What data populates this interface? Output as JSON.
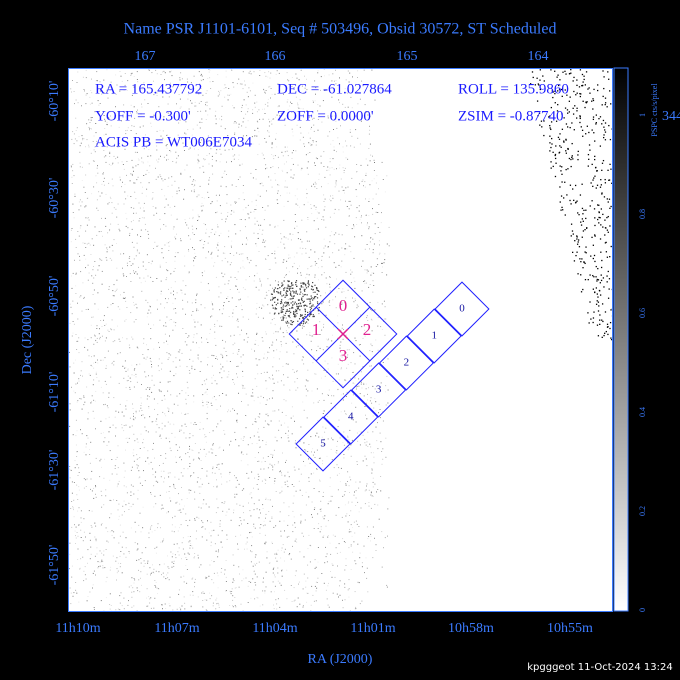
{
  "header": {
    "title": "Name PSR J1101-6101, Seq # 503496, Obsid 30572, ST Scheduled"
  },
  "info": [
    [
      "RA = 165.437792",
      "DEC = -61.027864",
      "ROLL = 135.9860"
    ],
    [
      "YOFF =  -0.300'",
      "ZOFF =  0.0000'",
      "ZSIM = -0.87740"
    ],
    [
      "ACIS PB = WT006E7034"
    ]
  ],
  "axes": {
    "x_label": "RA (J2000)",
    "y_label": "Dec (J2000)",
    "top_ticks": [
      "167",
      "166",
      "165",
      "164"
    ],
    "bottom_ticks": [
      "11h10m",
      "11h07m",
      "11h04m",
      "11h01m",
      "10h58m",
      "10h55m"
    ],
    "left_ticks": [
      "-60°10'",
      "-60°30'",
      "-60°50'",
      "-61°10'",
      "-61°30'",
      "-61°50'"
    ]
  },
  "colorbar": {
    "label": "PSPC cts/s/pixel",
    "ticks": [
      "0",
      "0.2",
      "0.4",
      "0.6",
      "0.8",
      "1"
    ],
    "overflow": "344"
  },
  "acis_i": [
    "0",
    "1",
    "2",
    "3"
  ],
  "acis_s": [
    "0",
    "1",
    "2",
    "3",
    "4",
    "5"
  ],
  "footer": "kpgggeot 11-Oct-2024 13:24"
}
